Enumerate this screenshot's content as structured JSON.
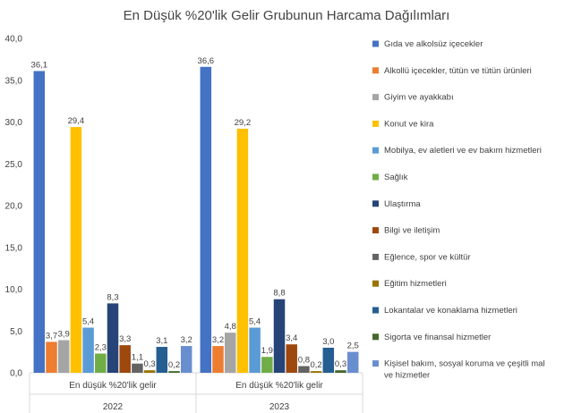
{
  "chart_data": {
    "type": "bar",
    "title": "En Düşük %20'lik Gelir Grubunun Harcama Dağılımları",
    "xlabel": "",
    "ylabel": "",
    "ylim": [
      0,
      40
    ],
    "yticks": [
      "0,0",
      "5,0",
      "10,0",
      "15,0",
      "20,0",
      "25,0",
      "30,0",
      "35,0",
      "40,0"
    ],
    "categories": [
      {
        "label": "En düşük %20'lik gelir",
        "group": "2022"
      },
      {
        "label": "En düşük %20'lik gelir",
        "group": "2023"
      }
    ],
    "legend_position": "right",
    "grid": false,
    "series": [
      {
        "name": "Gıda ve alkolsüz içecekler",
        "color": "#4472C4",
        "values": [
          36.1,
          36.6
        ],
        "labels": [
          "36,1",
          "36,6"
        ]
      },
      {
        "name": "Alkollü içecekler, tütün ve tütün ürünleri",
        "color": "#ED7D31",
        "values": [
          3.7,
          3.2
        ],
        "labels": [
          "3,7",
          "3,2"
        ]
      },
      {
        "name": "Giyim ve ayakkabı",
        "color": "#A5A5A5",
        "values": [
          3.9,
          4.8
        ],
        "labels": [
          "3,9",
          "4,8"
        ]
      },
      {
        "name": "Konut ve kira",
        "color": "#FFC000",
        "values": [
          29.4,
          29.2
        ],
        "labels": [
          "29,4",
          "29,2"
        ]
      },
      {
        "name": "Mobilya, ev aletleri ve ev bakım hizmetleri",
        "color": "#5B9BD5",
        "values": [
          5.4,
          5.4
        ],
        "labels": [
          "5,4",
          "5,4"
        ]
      },
      {
        "name": "Sağlık",
        "color": "#70AD47",
        "values": [
          2.3,
          1.9
        ],
        "labels": [
          "2,3",
          "1,9"
        ]
      },
      {
        "name": "Ulaştırma",
        "color": "#264478",
        "values": [
          8.3,
          8.8
        ],
        "labels": [
          "8,3",
          "8,8"
        ]
      },
      {
        "name": "Bilgi ve iletişim",
        "color": "#9E480E",
        "values": [
          3.3,
          3.4
        ],
        "labels": [
          "3,3",
          "3,4"
        ]
      },
      {
        "name": "Eğlence, spor ve kültür",
        "color": "#636363",
        "values": [
          1.1,
          0.8
        ],
        "labels": [
          "1,1",
          "0,8"
        ]
      },
      {
        "name": "Eğitim hizmetleri",
        "color": "#997300",
        "values": [
          0.3,
          0.2
        ],
        "labels": [
          "0,3",
          "0,2"
        ]
      },
      {
        "name": "Lokantalar ve konaklama hizmetleri",
        "color": "#255E91",
        "values": [
          3.1,
          3.0
        ],
        "labels": [
          "3,1",
          "3,0"
        ]
      },
      {
        "name": "Sigorta ve finansal hizmetler",
        "color": "#43682B",
        "values": [
          0.2,
          0.3
        ],
        "labels": [
          "0,2",
          "0,3"
        ]
      },
      {
        "name": "Kişisel bakım, sosyal koruma ve çeşitli mal ve hizmetler",
        "color": "#698ED0",
        "values": [
          3.2,
          2.5
        ],
        "labels": [
          "3,2",
          "2,5"
        ]
      }
    ]
  }
}
